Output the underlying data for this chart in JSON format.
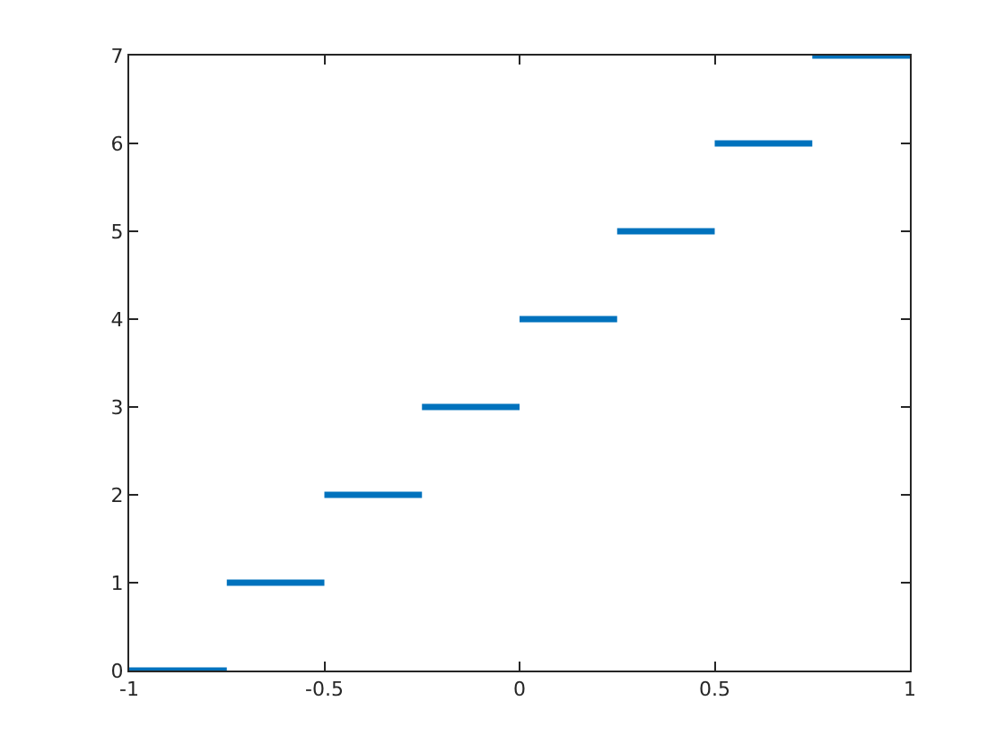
{
  "chart_data": {
    "type": "line",
    "series": [
      {
        "color": "#0072bd",
        "x": [
          -1,
          -0.75
        ],
        "values": [
          0,
          0
        ]
      },
      {
        "color": "#0072bd",
        "x": [
          -0.75,
          -0.5
        ],
        "values": [
          1,
          1
        ]
      },
      {
        "color": "#0072bd",
        "x": [
          -0.5,
          -0.25
        ],
        "values": [
          2,
          2
        ]
      },
      {
        "color": "#0072bd",
        "x": [
          -0.25,
          0
        ],
        "values": [
          3,
          3
        ]
      },
      {
        "color": "#0072bd",
        "x": [
          0,
          0.25
        ],
        "values": [
          4,
          4
        ]
      },
      {
        "color": "#0072bd",
        "x": [
          0.25,
          0.5
        ],
        "values": [
          5,
          5
        ]
      },
      {
        "color": "#0072bd",
        "x": [
          0.5,
          0.75
        ],
        "values": [
          6,
          6
        ]
      },
      {
        "color": "#0072bd",
        "x": [
          0.75,
          1
        ],
        "values": [
          7,
          7
        ]
      }
    ],
    "xlim": [
      -1,
      1
    ],
    "xticks": [
      -1,
      -0.5,
      0,
      0.5,
      1
    ],
    "ylim": [
      0,
      7
    ],
    "yticks": [
      0,
      1,
      2,
      3,
      4,
      5,
      6,
      7
    ],
    "marker": "none",
    "line_style": "solid"
  }
}
